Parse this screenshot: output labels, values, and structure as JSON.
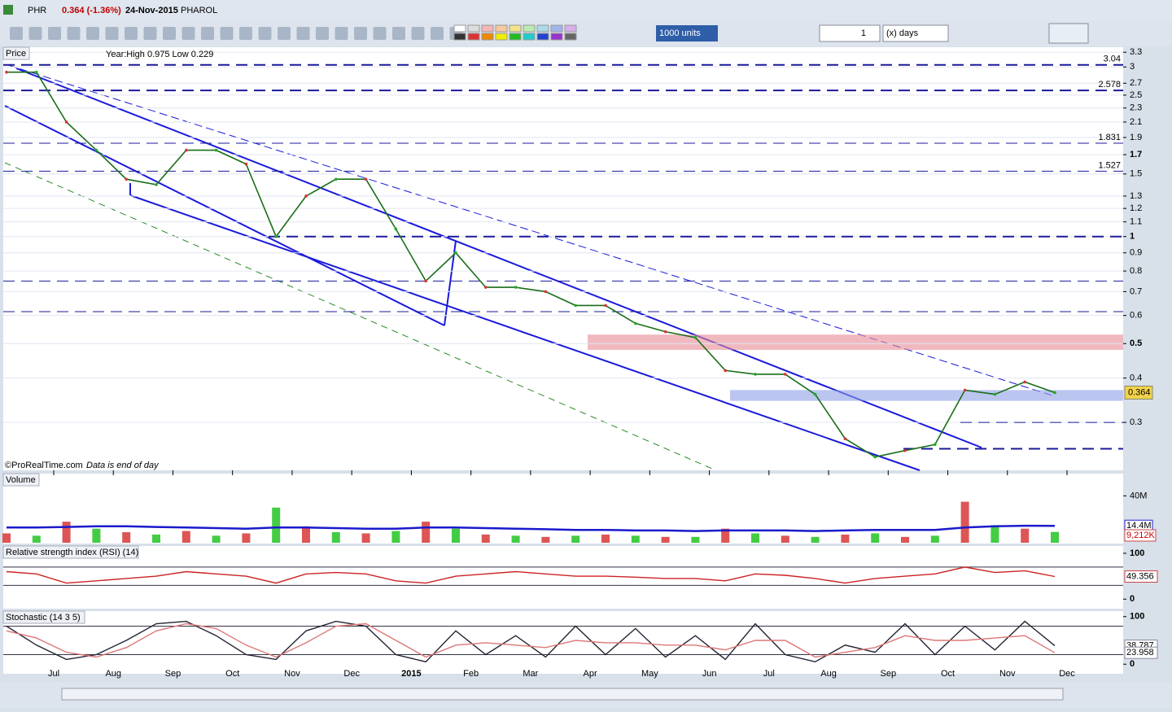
{
  "window": {
    "symbol": "PHR",
    "quote": "0.364 (-1.36%)",
    "date": "24-Nov-2015",
    "name": "PHAROL"
  },
  "toolbar": {
    "units": "1000 units",
    "period_count": "1",
    "period_unit": "(x) days"
  },
  "price": {
    "label": "Price",
    "info": "Year:High 0.975 Low 0.229",
    "credit": "©ProRealTime.com",
    "note": "Data is end of day",
    "ylim": [
      0.22,
      3.41
    ],
    "log": true,
    "yticks": [
      3.3,
      3,
      2.7,
      2.5,
      2.3,
      2.1,
      1.9,
      1.7,
      1.5,
      1.3,
      1.2,
      1.1,
      1,
      0.9,
      0.8,
      0.7,
      0.6,
      0.5,
      0.4,
      0.3
    ],
    "levels": [
      {
        "value": 3.04,
        "label": "3.04"
      },
      {
        "value": 2.578,
        "label": "2.578"
      },
      {
        "value": 1.831,
        "label": "1.831"
      },
      {
        "value": 1.527,
        "label": "1.527"
      },
      {
        "value": 1
      },
      {
        "value": 0.75
      },
      {
        "value": 0.615
      },
      {
        "value": 0.3
      },
      {
        "value": 0.253
      }
    ],
    "zones": [
      {
        "low": 0.48,
        "high": 0.53,
        "color": "#e88a95"
      },
      {
        "low": 0.345,
        "high": 0.37,
        "color": "#8d9fe6"
      }
    ],
    "close": [
      2.9,
      2.9,
      2.1,
      1.75,
      1.45,
      1.4,
      1.75,
      1.75,
      1.6,
      1.0,
      1.3,
      1.45,
      1.45,
      1.05,
      0.75,
      0.9,
      0.72,
      0.72,
      0.7,
      0.64,
      0.64,
      0.57,
      0.54,
      0.52,
      0.42,
      0.41,
      0.41,
      0.36,
      0.27,
      0.24,
      0.25,
      0.26,
      0.37,
      0.36,
      0.39,
      0.364
    ],
    "current": 0.364
  },
  "months": [
    "Jul",
    "Aug",
    "Sep",
    "Oct",
    "Nov",
    "Dec",
    "2015",
    "Feb",
    "Mar",
    "Apr",
    "May",
    "Jun",
    "Jul",
    "Aug",
    "Sep",
    "Oct",
    "Nov",
    "Dec"
  ],
  "volume": {
    "label": "Volume",
    "ylim": [
      0,
      59000000
    ],
    "yticks": [
      {
        "value": 40000000,
        "label": "40M"
      }
    ],
    "values": [
      8000000,
      6000000,
      18000000,
      12000000,
      9000000,
      7000000,
      10000000,
      6000000,
      8000000,
      30000000,
      14000000,
      9000000,
      8000000,
      10000000,
      18000000,
      12000000,
      7000000,
      6000000,
      5000000,
      6000000,
      7000000,
      6000000,
      5000000,
      5000000,
      12000000,
      8000000,
      6000000,
      5000000,
      7000000,
      8000000,
      5000000,
      6000000,
      35000000,
      15000000,
      12000000,
      9212000
    ],
    "value_labels": [
      null,
      null,
      null,
      null,
      null,
      null,
      null,
      null,
      null,
      null,
      null,
      null,
      null,
      null,
      null,
      null,
      null,
      null,
      null,
      null,
      null,
      null,
      null,
      null,
      null,
      null,
      null,
      null,
      null,
      null,
      null,
      null,
      null,
      null,
      null,
      "9,212K"
    ],
    "ma": [
      13000000,
      13000000,
      13500000,
      14000000,
      14000000,
      13500000,
      13000000,
      12500000,
      12000000,
      13000000,
      13000000,
      12500000,
      12000000,
      12000000,
      13000000,
      13000000,
      12500000,
      12000000,
      11500000,
      11000000,
      11000000,
      10500000,
      10500000,
      10000000,
      10500000,
      10500000,
      10500000,
      10000000,
      10500000,
      11000000,
      11000000,
      11000000,
      13000000,
      14000000,
      14500000,
      14400000
    ],
    "ma_label": "14.4M"
  },
  "rsi": {
    "label": "Relative strength index (RSI) (14)",
    "ylim": [
      -3,
      107
    ],
    "yticks": [
      100,
      0
    ],
    "bands": [
      70,
      30
    ],
    "values": [
      60,
      55,
      35,
      40,
      45,
      50,
      60,
      55,
      50,
      35,
      55,
      58,
      55,
      40,
      35,
      50,
      55,
      60,
      55,
      50,
      50,
      48,
      45,
      45,
      40,
      55,
      52,
      45,
      35,
      45,
      50,
      55,
      70,
      58,
      62,
      49.356
    ],
    "current": "49.356"
  },
  "stoch": {
    "label": "Stochastic (14 3 5)",
    "ylim": [
      -3,
      103
    ],
    "yticks": [
      100,
      0
    ],
    "bands": [
      80,
      20
    ],
    "k": [
      80,
      40,
      10,
      20,
      50,
      85,
      90,
      60,
      20,
      10,
      70,
      90,
      80,
      20,
      5,
      70,
      20,
      60,
      15,
      80,
      20,
      75,
      15,
      60,
      10,
      85,
      20,
      5,
      40,
      25,
      85,
      20,
      80,
      30,
      90,
      38.787
    ],
    "d": [
      70,
      55,
      25,
      15,
      35,
      70,
      85,
      75,
      40,
      15,
      45,
      80,
      85,
      50,
      15,
      40,
      45,
      40,
      35,
      50,
      45,
      45,
      40,
      40,
      30,
      50,
      50,
      15,
      25,
      35,
      60,
      50,
      50,
      55,
      60,
      23.958
    ],
    "k_label": "38.787",
    "d_label": "23.958"
  }
}
